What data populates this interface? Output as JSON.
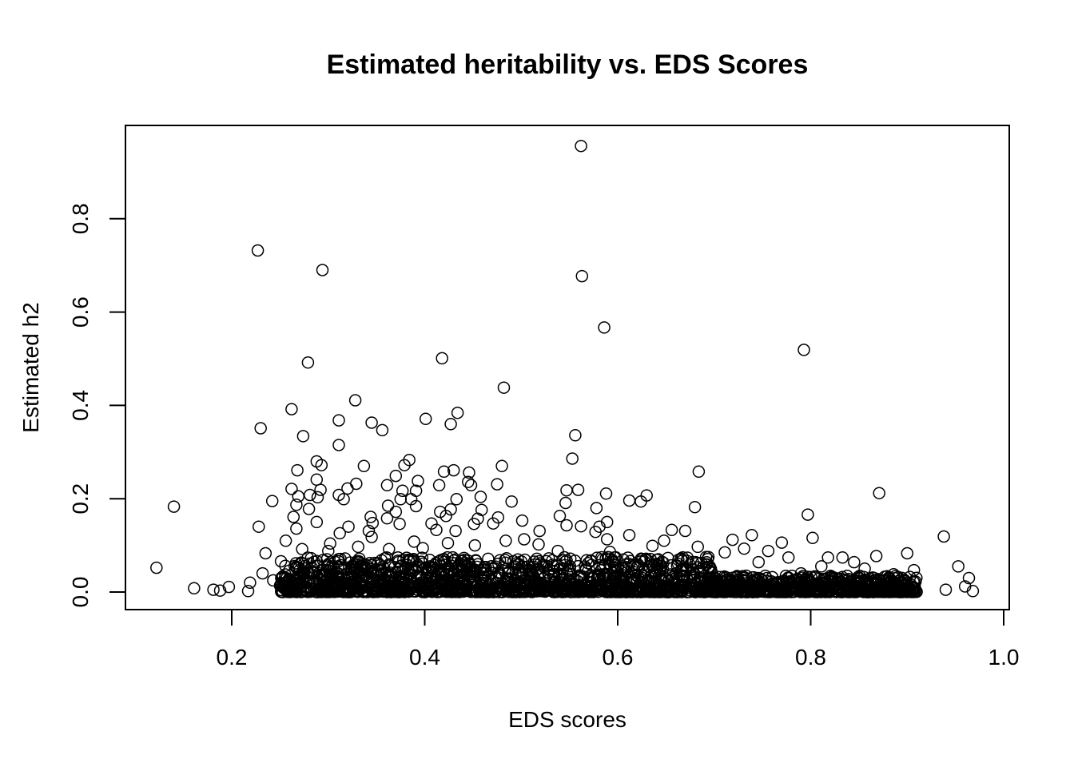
{
  "chart_data": {
    "type": "scatter",
    "title": "Estimated heritability vs. EDS Scores",
    "xlabel": "EDS scores",
    "ylabel": "Estimated h2",
    "xlim": [
      0.12,
      0.97
    ],
    "ylim": [
      0.0,
      0.96
    ],
    "x_ticks": [
      {
        "value": 0.2,
        "label": "0.2"
      },
      {
        "value": 0.4,
        "label": "0.4"
      },
      {
        "value": 0.6,
        "label": "0.6"
      },
      {
        "value": 0.8,
        "label": "0.8"
      },
      {
        "value": 1.0,
        "label": "1.0"
      }
    ],
    "y_ticks": [
      {
        "value": 0.0,
        "label": "0.0"
      },
      {
        "value": 0.2,
        "label": "0.2"
      },
      {
        "value": 0.4,
        "label": "0.4"
      },
      {
        "value": 0.6,
        "label": "0.6"
      },
      {
        "value": 0.8,
        "label": "0.8"
      }
    ],
    "grid": false,
    "marker": "open-circle",
    "color": "#000000",
    "points": [
      [
        0.562,
        0.956
      ],
      [
        0.227,
        0.732
      ],
      [
        0.294,
        0.69
      ],
      [
        0.563,
        0.677
      ],
      [
        0.586,
        0.567
      ],
      [
        0.793,
        0.519
      ],
      [
        0.418,
        0.501
      ],
      [
        0.279,
        0.492
      ],
      [
        0.482,
        0.438
      ],
      [
        0.328,
        0.411
      ],
      [
        0.262,
        0.392
      ],
      [
        0.434,
        0.384
      ],
      [
        0.401,
        0.371
      ],
      [
        0.311,
        0.368
      ],
      [
        0.345,
        0.363
      ],
      [
        0.427,
        0.36
      ],
      [
        0.23,
        0.351
      ],
      [
        0.356,
        0.347
      ],
      [
        0.556,
        0.336
      ],
      [
        0.274,
        0.334
      ],
      [
        0.311,
        0.315
      ],
      [
        0.553,
        0.286
      ],
      [
        0.384,
        0.283
      ],
      [
        0.288,
        0.28
      ],
      [
        0.293,
        0.272
      ],
      [
        0.379,
        0.272
      ],
      [
        0.337,
        0.27
      ],
      [
        0.48,
        0.27
      ],
      [
        0.268,
        0.261
      ],
      [
        0.42,
        0.258
      ],
      [
        0.43,
        0.261
      ],
      [
        0.446,
        0.256
      ],
      [
        0.684,
        0.258
      ],
      [
        0.37,
        0.249
      ],
      [
        0.288,
        0.241
      ],
      [
        0.393,
        0.238
      ],
      [
        0.445,
        0.236
      ],
      [
        0.329,
        0.232
      ],
      [
        0.475,
        0.231
      ],
      [
        0.361,
        0.229
      ],
      [
        0.415,
        0.229
      ],
      [
        0.448,
        0.229
      ],
      [
        0.32,
        0.222
      ],
      [
        0.262,
        0.221
      ],
      [
        0.292,
        0.219
      ],
      [
        0.547,
        0.218
      ],
      [
        0.559,
        0.219
      ],
      [
        0.377,
        0.217
      ],
      [
        0.391,
        0.217
      ],
      [
        0.871,
        0.212
      ],
      [
        0.588,
        0.211
      ],
      [
        0.281,
        0.208
      ],
      [
        0.311,
        0.208
      ],
      [
        0.269,
        0.205
      ],
      [
        0.63,
        0.207
      ],
      [
        0.458,
        0.204
      ],
      [
        0.289,
        0.203
      ],
      [
        0.316,
        0.199
      ],
      [
        0.375,
        0.199
      ],
      [
        0.386,
        0.199
      ],
      [
        0.433,
        0.199
      ],
      [
        0.242,
        0.195
      ],
      [
        0.612,
        0.196
      ],
      [
        0.624,
        0.194
      ],
      [
        0.49,
        0.194
      ],
      [
        0.546,
        0.191
      ],
      [
        0.267,
        0.187
      ],
      [
        0.362,
        0.185
      ],
      [
        0.391,
        0.184
      ],
      [
        0.14,
        0.183
      ],
      [
        0.28,
        0.178
      ],
      [
        0.427,
        0.177
      ],
      [
        0.578,
        0.18
      ],
      [
        0.68,
        0.182
      ],
      [
        0.416,
        0.172
      ],
      [
        0.37,
        0.172
      ],
      [
        0.459,
        0.176
      ],
      [
        0.797,
        0.166
      ],
      [
        0.264,
        0.161
      ],
      [
        0.344,
        0.161
      ],
      [
        0.422,
        0.163
      ],
      [
        0.455,
        0.157
      ],
      [
        0.476,
        0.16
      ],
      [
        0.54,
        0.163
      ],
      [
        0.361,
        0.158
      ],
      [
        0.407,
        0.147
      ],
      [
        0.501,
        0.153
      ],
      [
        0.589,
        0.15
      ],
      [
        0.288,
        0.15
      ],
      [
        0.346,
        0.148
      ],
      [
        0.228,
        0.14
      ],
      [
        0.321,
        0.14
      ],
      [
        0.374,
        0.146
      ],
      [
        0.451,
        0.146
      ],
      [
        0.471,
        0.147
      ],
      [
        0.547,
        0.143
      ],
      [
        0.562,
        0.141
      ],
      [
        0.581,
        0.14
      ],
      [
        0.656,
        0.133
      ],
      [
        0.67,
        0.131
      ],
      [
        0.267,
        0.136
      ],
      [
        0.312,
        0.126
      ],
      [
        0.342,
        0.131
      ],
      [
        0.412,
        0.133
      ],
      [
        0.432,
        0.131
      ],
      [
        0.519,
        0.131
      ],
      [
        0.577,
        0.129
      ],
      [
        0.612,
        0.122
      ],
      [
        0.739,
        0.122
      ],
      [
        0.938,
        0.119
      ],
      [
        0.802,
        0.116
      ],
      [
        0.345,
        0.118
      ],
      [
        0.256,
        0.11
      ],
      [
        0.302,
        0.104
      ],
      [
        0.389,
        0.108
      ],
      [
        0.503,
        0.113
      ],
      [
        0.589,
        0.113
      ],
      [
        0.648,
        0.11
      ],
      [
        0.719,
        0.112
      ],
      [
        0.77,
        0.106
      ],
      [
        0.683,
        0.097
      ],
      [
        0.731,
        0.093
      ],
      [
        0.756,
        0.088
      ],
      [
        0.9,
        0.083
      ],
      [
        0.235,
        0.083
      ],
      [
        0.868,
        0.077
      ],
      [
        0.818,
        0.074
      ],
      [
        0.833,
        0.074
      ],
      [
        0.122,
        0.052
      ],
      [
        0.953,
        0.055
      ],
      [
        0.161,
        0.008
      ],
      [
        0.181,
        0.005
      ],
      [
        0.188,
        0.003
      ],
      [
        0.197,
        0.011
      ],
      [
        0.217,
        0.002
      ],
      [
        0.219,
        0.02
      ],
      [
        0.964,
        0.03
      ],
      [
        0.968,
        0.002
      ],
      [
        0.94,
        0.005
      ],
      [
        0.96,
        0.012
      ],
      [
        0.907,
        0.047
      ],
      [
        0.886,
        0.038
      ],
      [
        0.856,
        0.05
      ],
      [
        0.845,
        0.064
      ],
      [
        0.811,
        0.055
      ],
      [
        0.79,
        0.04
      ],
      [
        0.777,
        0.074
      ],
      [
        0.746,
        0.064
      ],
      [
        0.711,
        0.085
      ],
      [
        0.694,
        0.075
      ],
      [
        0.636,
        0.099
      ],
      [
        0.592,
        0.086
      ],
      [
        0.538,
        0.088
      ],
      [
        0.518,
        0.102
      ],
      [
        0.484,
        0.11
      ],
      [
        0.452,
        0.1
      ],
      [
        0.424,
        0.105
      ],
      [
        0.398,
        0.094
      ],
      [
        0.363,
        0.092
      ],
      [
        0.331,
        0.097
      ],
      [
        0.3,
        0.088
      ],
      [
        0.273,
        0.092
      ],
      [
        0.251,
        0.066
      ],
      [
        0.232,
        0.04
      ],
      [
        0.243,
        0.025
      ]
    ]
  }
}
